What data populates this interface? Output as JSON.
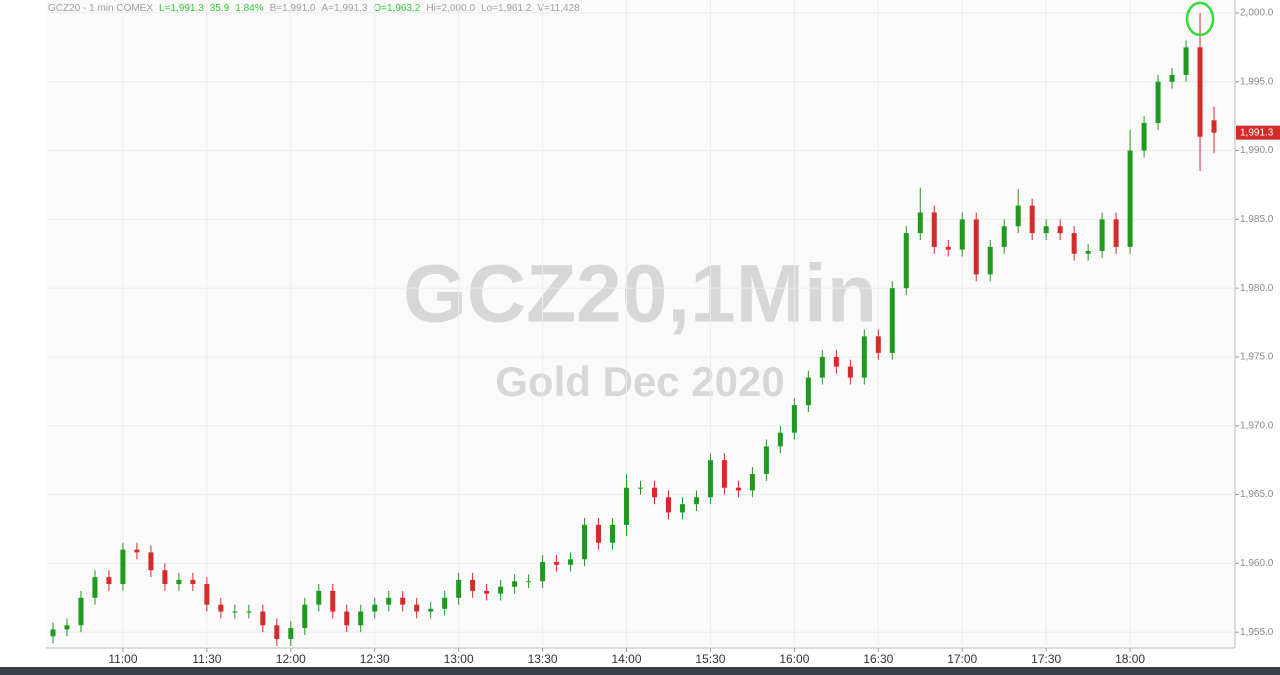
{
  "chart_data": {
    "type": "candlestick",
    "header": [
      {
        "text": "GCZ20 - 1 min  COMEX",
        "color": "#a0a0a0"
      },
      {
        "text": "L=1,991.3",
        "color": "#33cc33"
      },
      {
        "text": "35.9",
        "color": "#33cc33"
      },
      {
        "text": "1.84%",
        "color": "#33cc33"
      },
      {
        "text": "B=1,991.0",
        "color": "#a0a0a0"
      },
      {
        "text": "A=1,991.3",
        "color": "#a0a0a0"
      },
      {
        "text": "O=1,963.2",
        "color": "#33cc33"
      },
      {
        "text": "Hi=2,000.0",
        "color": "#a0a0a0"
      },
      {
        "text": "Lo=1,961.2",
        "color": "#a0a0a0"
      },
      {
        "text": "V=11,428",
        "color": "#a0a0a0"
      }
    ],
    "watermark_title": "GCZ20,1Min",
    "watermark_subtitle": "Gold Dec 2020",
    "last_price_label": "1,991.3",
    "up_color": "#1f9a1f",
    "down_color": "#d42a2a",
    "last_price_color": "#d42a2a",
    "grid": true,
    "categories": [
      null,
      null,
      null,
      null,
      null,
      "11:00",
      null,
      null,
      null,
      null,
      null,
      "11:30",
      null,
      null,
      null,
      null,
      null,
      "12:00",
      null,
      null,
      null,
      null,
      null,
      "12:30",
      null,
      null,
      null,
      null,
      null,
      "13:00",
      null,
      null,
      null,
      null,
      null,
      "13:30",
      null,
      null,
      null,
      null,
      null,
      "14:00",
      null,
      null,
      null,
      null,
      null,
      "15:30",
      null,
      null,
      null,
      null,
      null,
      "16:00",
      null,
      null,
      null,
      null,
      null,
      "16:30",
      null,
      null,
      null,
      null,
      null,
      "17:00",
      null,
      null,
      null,
      null,
      null,
      "17:30",
      null,
      null,
      null,
      null,
      null,
      "18:00",
      null,
      null,
      null,
      null,
      null,
      null
    ],
    "open": [
      1954.7,
      1955.2,
      1955.5,
      1957.5,
      1959,
      1958.5,
      1961,
      1960.8,
      1959.5,
      1958.5,
      1958.8,
      1958.5,
      1957,
      1956.5,
      1956.5,
      1956.5,
      1955.5,
      1954.5,
      1955.3,
      1957,
      1958,
      1956.5,
      1955.5,
      1956.5,
      1957,
      1957.5,
      1957,
      1956.5,
      1956.7,
      1957.5,
      1958.8,
      1958,
      1957.8,
      1958.3,
      1958.7,
      1958.7,
      1960.1,
      1959.9,
      1960.3,
      1962.8,
      1961.5,
      1962.8,
      1965.5,
      1965.5,
      1964.8,
      1963.7,
      1964.3,
      1964.8,
      1967.5,
      1965.5,
      1965.3,
      1966.5,
      1968.5,
      1969.5,
      1971.5,
      1973.5,
      1975,
      1974.3,
      1973.5,
      1976.5,
      1975.3,
      1980,
      1984,
      1985.5,
      1983,
      1982.8,
      1985,
      1981,
      1983,
      1984.5,
      1986,
      1984,
      1984.5,
      1984,
      1982.5,
      1982.7,
      1985,
      1983,
      1990,
      1992,
      1995,
      1995.5,
      1997.5,
      1992.2
    ],
    "high": [
      1955.7,
      1956.0,
      1958.0,
      1959.5,
      1959.5,
      1961.5,
      1961.5,
      1961.3,
      1960.0,
      1959.3,
      1959.3,
      1959.0,
      1957.5,
      1957.0,
      1957.0,
      1957.0,
      1956.0,
      1955.8,
      1957.5,
      1958.5,
      1958.5,
      1957.0,
      1957.0,
      1957.5,
      1958.0,
      1958.0,
      1957.5,
      1957.2,
      1958.0,
      1959.3,
      1959.3,
      1958.5,
      1958.8,
      1959.2,
      1959.2,
      1960.6,
      1960.6,
      1960.8,
      1963.3,
      1963.3,
      1963.3,
      1966.5,
      1966.0,
      1966.0,
      1965.3,
      1964.8,
      1965.3,
      1968.0,
      1968.0,
      1966.0,
      1967.0,
      1969.0,
      1970.0,
      1972.0,
      1974.0,
      1975.5,
      1975.5,
      1974.8,
      1977.0,
      1977.0,
      1980.5,
      1984.5,
      1987.3,
      1986.0,
      1983.5,
      1985.5,
      1985.5,
      1983.5,
      1985.0,
      1987.2,
      1986.5,
      1985.0,
      1985.0,
      1984.5,
      1983.2,
      1985.5,
      1985.5,
      1991.5,
      1992.5,
      1995.5,
      1996.0,
      1998.0,
      2000,
      1993.2
    ],
    "low": [
      1954.2,
      1954.7,
      1955.0,
      1957.0,
      1958.0,
      1958.0,
      1960.3,
      1959.0,
      1958.0,
      1958.0,
      1958.0,
      1956.5,
      1956.0,
      1956.0,
      1956.0,
      1955.0,
      1954.0,
      1954.0,
      1954.8,
      1956.5,
      1956.0,
      1955.0,
      1955.0,
      1956.0,
      1956.5,
      1956.5,
      1956.0,
      1956.0,
      1956.2,
      1957.0,
      1957.5,
      1957.3,
      1957.3,
      1957.8,
      1958.2,
      1958.2,
      1959.4,
      1959.4,
      1959.8,
      1961.0,
      1961.0,
      1962.0,
      1965.0,
      1964.3,
      1963.2,
      1963.2,
      1963.8,
      1964.3,
      1965.0,
      1964.8,
      1964.8,
      1966.0,
      1968.0,
      1969.0,
      1971.0,
      1973.0,
      1973.8,
      1973.0,
      1973.0,
      1974.8,
      1974.8,
      1979.5,
      1983.5,
      1982.5,
      1982.3,
      1982.3,
      1980.5,
      1980.5,
      1982.5,
      1984.0,
      1983.5,
      1983.5,
      1983.5,
      1982.0,
      1982.0,
      1982.2,
      1982.5,
      1982.5,
      1989.5,
      1991.5,
      1994.5,
      1995.0,
      1988.5,
      1989.8
    ],
    "close": [
      1955.2,
      1955.5,
      1957.5,
      1959,
      1958.5,
      1961,
      1960.8,
      1959.5,
      1958.5,
      1958.8,
      1958.5,
      1957,
      1956.5,
      1956.5,
      1956.5,
      1955.5,
      1954.5,
      1955.3,
      1957,
      1958,
      1956.5,
      1955.5,
      1956.5,
      1957,
      1957.5,
      1957,
      1956.5,
      1956.7,
      1957.5,
      1958.8,
      1958,
      1957.8,
      1958.3,
      1958.7,
      1958.7,
      1960.1,
      1959.9,
      1960.3,
      1962.8,
      1961.5,
      1962.8,
      1965.5,
      1965.5,
      1964.8,
      1963.7,
      1964.3,
      1964.8,
      1967.5,
      1965.5,
      1965.3,
      1966.5,
      1968.5,
      1969.5,
      1971.5,
      1973.5,
      1975,
      1974.3,
      1973.5,
      1976.5,
      1975.3,
      1980,
      1984,
      1985.5,
      1983,
      1982.8,
      1985,
      1981,
      1983,
      1984.5,
      1986,
      1984,
      1984.5,
      1984,
      1982.5,
      1982.7,
      1985,
      1983,
      1990,
      1992,
      1995,
      1995.5,
      1997.5,
      1991,
      1991.3
    ],
    "ylim": [
      1953.85,
      2000.94
    ],
    "yticks": [
      {
        "value": 1955,
        "label": "1,955.0"
      },
      {
        "value": 1960,
        "label": "1,960.0"
      },
      {
        "value": 1965,
        "label": "1,965.0"
      },
      {
        "value": 1970,
        "label": "1,970.0"
      },
      {
        "value": 1975,
        "label": "1,975.0"
      },
      {
        "value": 1980,
        "label": "1,980.0"
      },
      {
        "value": 1985,
        "label": "1,985.0"
      },
      {
        "value": 1990,
        "label": "1,990.0"
      },
      {
        "value": 1995,
        "label": "1,995.0"
      },
      {
        "value": 2000,
        "label": "2,000.0"
      }
    ]
  }
}
